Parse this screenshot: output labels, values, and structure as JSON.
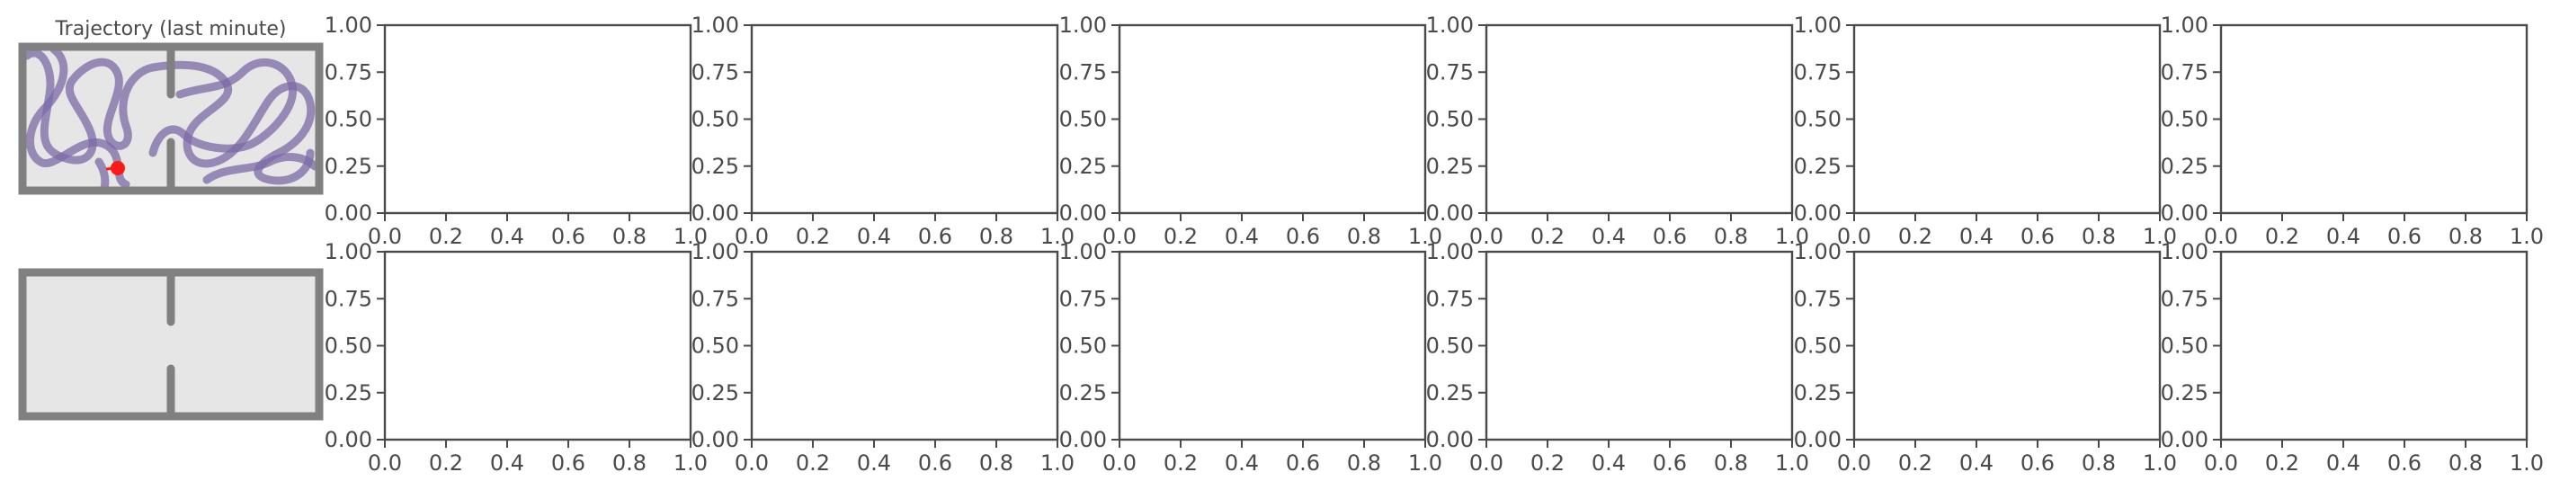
{
  "figure": {
    "env_title": "Trajectory (last minute)"
  },
  "environment": {
    "wall_color": "#808080",
    "floor_color": "#e6e6e6",
    "trajectory_color": "#7b6aa6",
    "agent_color": "#ff1a1a"
  },
  "chart_data": [
    {
      "type": "scatter",
      "panel": "row1-col2",
      "series": [],
      "xlim": [
        0.0,
        1.0
      ],
      "ylim": [
        0.0,
        1.0
      ],
      "xticks": [
        "0.0",
        "0.2",
        "0.4",
        "0.6",
        "0.8",
        "1.0"
      ],
      "yticks": [
        "0.00",
        "0.25",
        "0.50",
        "0.75",
        "1.00"
      ],
      "grid": false,
      "axis_color": "#4a4a4a"
    }
  ]
}
